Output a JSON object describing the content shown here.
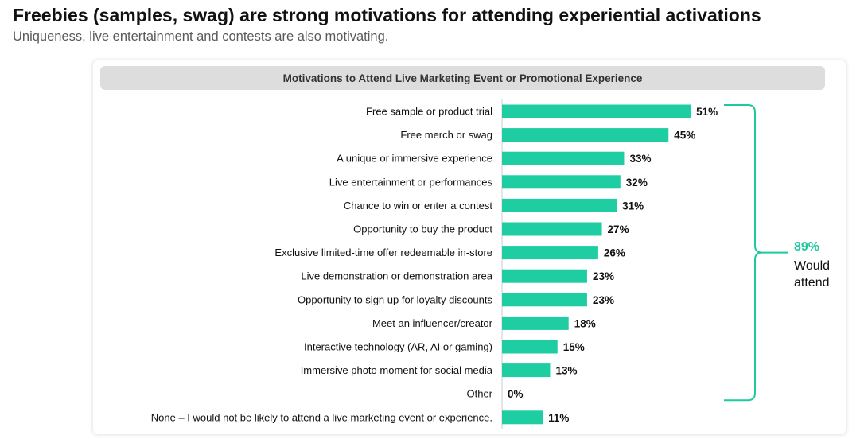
{
  "header": {
    "title": "Freebies (samples, swag) are strong motivations for attending experiential activations",
    "subtitle": "Uniqueness, live entertainment and contests are also motivating."
  },
  "chart_data": {
    "type": "bar",
    "orientation": "horizontal",
    "title": "Motivations to Attend Live Marketing Event or Promotional Experience",
    "categories": [
      "Free sample or product trial",
      "Free merch or swag",
      "A unique or immersive experience",
      "Live entertainment or performances",
      "Chance to win or enter a contest",
      "Opportunity to buy the product",
      "Exclusive limited-time offer redeemable in-store",
      "Live demonstration or demonstration area",
      "Opportunity to sign up for loyalty discounts",
      "Meet an influencer/creator",
      "Interactive technology (AR, AI or gaming)",
      "Immersive photo moment for social media",
      "Other",
      "None – I would not be likely to attend a live marketing event or experience."
    ],
    "values": [
      51,
      45,
      33,
      32,
      31,
      27,
      26,
      23,
      23,
      18,
      15,
      13,
      0,
      11
    ],
    "value_labels": [
      "51%",
      "45%",
      "33%",
      "32%",
      "31%",
      "27%",
      "26%",
      "23%",
      "23%",
      "18%",
      "15%",
      "13%",
      "0%",
      "11%"
    ],
    "unit": "%",
    "bar_color": "#1fcda3",
    "grid": false,
    "annotation": {
      "value": "89%",
      "text": "Would attend",
      "spans": "Free sample or product trial to Other",
      "color": "#1fc9a0"
    }
  }
}
